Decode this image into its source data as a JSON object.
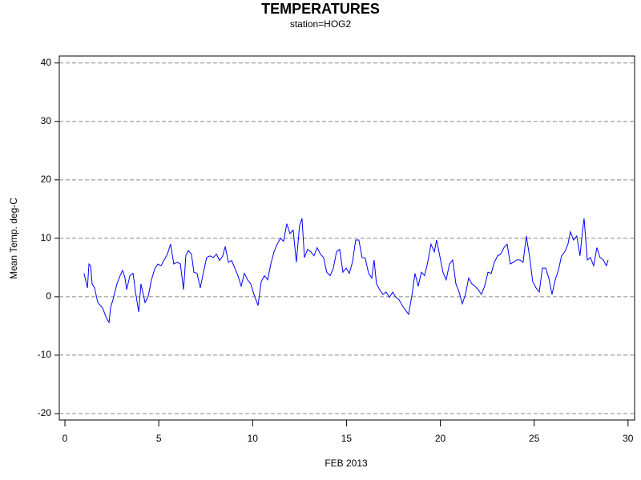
{
  "chart_data": {
    "type": "line",
    "title": "TEMPERATURES",
    "subtitle": "station=HOG2",
    "x_label": "FEB 2013",
    "y_label": "Mean Temp. deg-C",
    "xlim": [
      -0.3,
      30.35
    ],
    "ylim": [
      -21.1,
      41.2
    ],
    "xticks": [
      0,
      5,
      10,
      15,
      20,
      25,
      30
    ],
    "yticks": [
      -20,
      -10,
      0,
      10,
      20,
      30,
      40
    ],
    "grid": true,
    "x": [
      1.02,
      1.2,
      1.28,
      1.37,
      1.45,
      1.58,
      1.75,
      2.0,
      2.22,
      2.35,
      2.43,
      2.56,
      2.77,
      2.94,
      3.07,
      3.2,
      3.29,
      3.46,
      3.63,
      3.76,
      3.93,
      4.05,
      4.27,
      4.44,
      4.61,
      4.78,
      4.95,
      5.12,
      5.29,
      5.46,
      5.63,
      5.8,
      5.98,
      6.15,
      6.32,
      6.44,
      6.57,
      6.74,
      6.87,
      7.04,
      7.21,
      7.38,
      7.55,
      7.73,
      7.9,
      8.07,
      8.24,
      8.41,
      8.54,
      8.71,
      8.88,
      9.05,
      9.22,
      9.39,
      9.56,
      9.73,
      9.9,
      10.07,
      10.29,
      10.46,
      10.63,
      10.8,
      10.97,
      11.14,
      11.31,
      11.48,
      11.65,
      11.82,
      11.99,
      12.16,
      12.33,
      12.5,
      12.63,
      12.76,
      12.93,
      13.1,
      13.27,
      13.44,
      13.61,
      13.78,
      13.95,
      14.13,
      14.3,
      14.47,
      14.64,
      14.81,
      14.98,
      15.15,
      15.32,
      15.49,
      15.66,
      15.83,
      16.0,
      16.18,
      16.35,
      16.47,
      16.6,
      16.77,
      16.94,
      17.11,
      17.29,
      17.46,
      17.63,
      17.8,
      17.97,
      18.14,
      18.31,
      18.48,
      18.65,
      18.82,
      18.99,
      19.16,
      19.33,
      19.5,
      19.68,
      19.8,
      19.97,
      20.14,
      20.31,
      20.49,
      20.66,
      20.83,
      21.0,
      21.17,
      21.34,
      21.51,
      21.68,
      21.85,
      22.02,
      22.19,
      22.36,
      22.54,
      22.71,
      22.88,
      23.05,
      23.22,
      23.39,
      23.56,
      23.73,
      23.9,
      24.07,
      24.24,
      24.41,
      24.58,
      24.75,
      24.92,
      25.1,
      25.27,
      25.44,
      25.61,
      25.78,
      25.95,
      26.12,
      26.29,
      26.46,
      26.63,
      26.8,
      26.93,
      27.1,
      27.27,
      27.44,
      27.57,
      27.66,
      27.83,
      28.0,
      28.17,
      28.34,
      28.51,
      28.68,
      28.85,
      28.94
    ],
    "series": [
      {
        "name": "Mean Temp",
        "color": "#0000ff",
        "values": [
          4.0,
          1.5,
          5.6,
          5.3,
          2.2,
          1.5,
          -1.0,
          -1.9,
          -3.7,
          -4.4,
          -1.9,
          -0.5,
          2.2,
          3.6,
          4.5,
          3.2,
          1.2,
          3.6,
          4.0,
          0.8,
          -2.6,
          2.2,
          -1.0,
          0.1,
          2.9,
          4.7,
          5.6,
          5.3,
          6.3,
          7.3,
          9.0,
          5.6,
          5.9,
          5.6,
          1.2,
          7.0,
          7.9,
          7.3,
          4.2,
          4.0,
          1.5,
          4.2,
          6.7,
          7.0,
          6.7,
          7.3,
          6.2,
          7.0,
          8.6,
          5.9,
          6.2,
          4.9,
          3.6,
          1.8,
          4.0,
          2.9,
          2.2,
          0.4,
          -1.5,
          2.6,
          3.6,
          2.9,
          5.6,
          7.7,
          9.0,
          10.0,
          9.5,
          12.5,
          10.8,
          11.4,
          5.9,
          12.2,
          13.4,
          6.7,
          8.1,
          7.7,
          7.0,
          8.4,
          7.3,
          6.7,
          4.2,
          3.6,
          4.9,
          7.7,
          8.1,
          4.2,
          4.9,
          4.0,
          5.9,
          9.7,
          9.7,
          6.7,
          6.6,
          4.0,
          3.2,
          6.3,
          2.2,
          1.2,
          0.4,
          0.8,
          -0.1,
          0.8,
          -0.1,
          -0.5,
          -1.5,
          -2.3,
          -3.0,
          0.1,
          4.0,
          1.8,
          4.2,
          3.6,
          5.9,
          9.0,
          7.7,
          9.7,
          7.0,
          4.2,
          2.9,
          5.6,
          6.3,
          2.2,
          0.8,
          -1.2,
          0.4,
          3.2,
          2.2,
          1.8,
          1.2,
          0.4,
          1.8,
          4.2,
          4.0,
          5.9,
          7.0,
          7.3,
          8.4,
          9.0,
          5.6,
          5.9,
          6.3,
          6.3,
          5.9,
          10.4,
          7.0,
          2.6,
          1.5,
          0.8,
          4.9,
          4.9,
          3.2,
          0.4,
          2.9,
          4.5,
          7.0,
          7.7,
          9.0,
          11.1,
          9.7,
          10.4,
          7.0,
          11.1,
          13.4,
          6.3,
          6.7,
          5.3,
          8.4,
          6.7,
          6.3,
          5.3,
          6.3
        ]
      }
    ]
  }
}
